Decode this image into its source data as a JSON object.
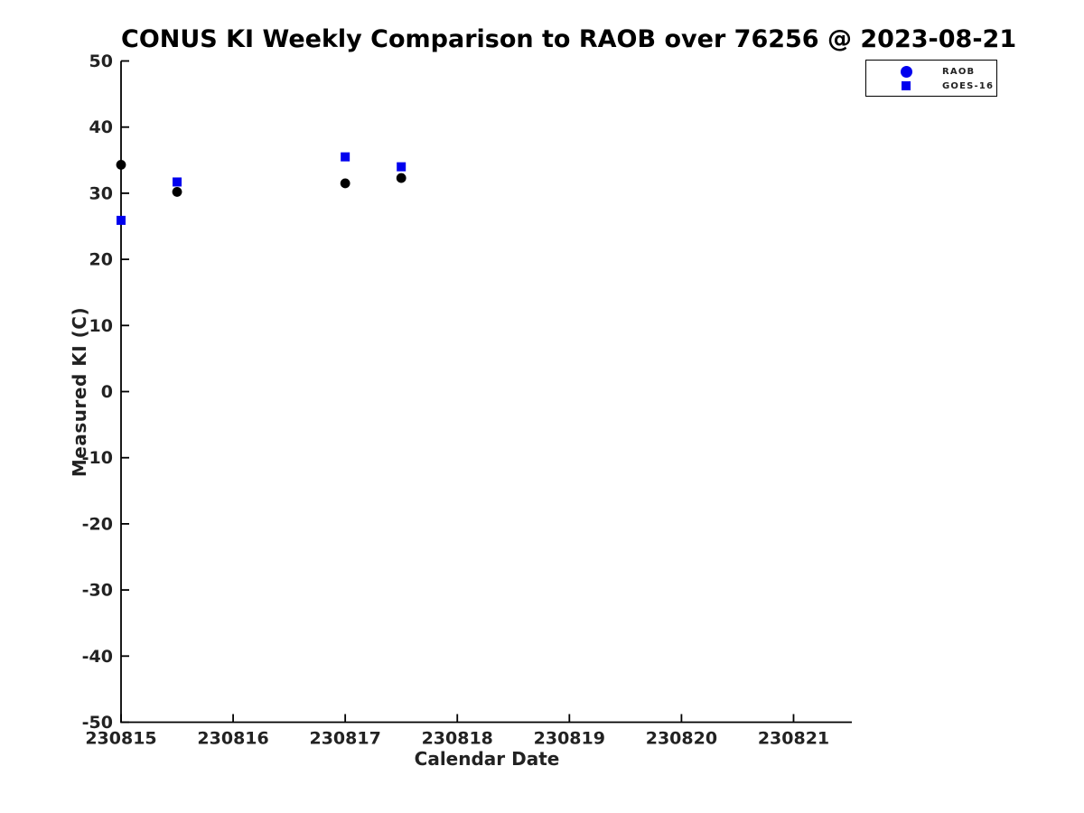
{
  "figure": {
    "background": "#ffffff",
    "axis_color": "#000000",
    "tick_label_color": "#222222"
  },
  "chart_data": {
    "type": "scatter",
    "title": "CONUS KI Weekly Comparison to RAOB over 76256 @ 2023-08-21",
    "xlabel": "Calendar Date",
    "ylabel": "Measured KI (C)",
    "xlim": [
      230815,
      230821.52
    ],
    "ylim": [
      -50,
      50
    ],
    "x_ticks": [
      230815,
      230816,
      230817,
      230818,
      230819,
      230820,
      230821
    ],
    "y_ticks": [
      -50,
      -40,
      -30,
      -20,
      -10,
      0,
      10,
      20,
      30,
      40,
      50
    ],
    "grid": false,
    "legend_position": "top-right",
    "series": [
      {
        "name": "RAOB",
        "marker": "circle",
        "color": "#000000",
        "legend_marker_color": "#0000ee",
        "points": [
          [
            230815.0,
            34.3
          ],
          [
            230815.5,
            30.2
          ],
          [
            230817.0,
            31.5
          ],
          [
            230817.5,
            32.3
          ]
        ]
      },
      {
        "name": "GOES-16",
        "marker": "square",
        "color": "#0000ee",
        "legend_marker_color": "#0000ee",
        "points": [
          [
            230815.0,
            25.9
          ],
          [
            230815.5,
            31.7
          ],
          [
            230817.0,
            35.5
          ],
          [
            230817.5,
            34.0
          ]
        ]
      }
    ]
  }
}
